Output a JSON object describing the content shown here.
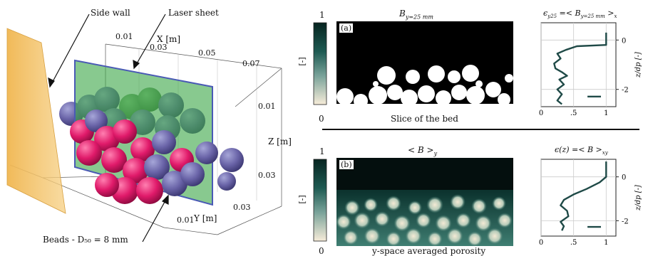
{
  "left": {
    "callouts": {
      "side_wall": "Side wall",
      "laser_sheet": "Laser sheet",
      "beads": "Beads - D₅₀ = 8 mm"
    },
    "axes": {
      "x_label": "X [m]",
      "x_ticks": [
        "0.01",
        "0.03",
        "0.05",
        "0.07"
      ],
      "z_label": "Z [m]",
      "z_ticks": [
        "0.01",
        "0.03"
      ],
      "y_label": "Y [m]",
      "y_ticks": [
        "0.01",
        "0.03"
      ]
    }
  },
  "colorbar": {
    "top": "1",
    "bottom": "0",
    "unit": "[-]"
  },
  "panels": {
    "a": {
      "tag": "(a)",
      "title": "B",
      "title_sub": "y=25 mm",
      "caption": "Slice of the bed",
      "profile_title": "ϵ",
      "profile_title_sub": "y25",
      "profile_title_rest": " =< B",
      "profile_title_sub2": "y=25 mm",
      "profile_title_end": " >",
      "profile_title_end_sub": "x"
    },
    "b": {
      "tag": "(b)",
      "title": "< B >",
      "title_sub": "y",
      "caption": "y-space averaged porosity",
      "profile_title": "ϵ(z) =< B >",
      "profile_title_sub": "xy"
    }
  },
  "profile_axes": {
    "x_ticks": [
      "0",
      ".5",
      "1"
    ],
    "y_ticks": [
      "0",
      "-2"
    ],
    "y_label": "z/d",
    "y_label_sub": "p",
    "y_unit": "[-]"
  },
  "chart_data": [
    {
      "type": "line",
      "panel": "a",
      "series": [
        {
          "values": [
            [
              1.0,
              0.3
            ],
            [
              1.0,
              -0.2
            ],
            [
              0.55,
              -0.25
            ],
            [
              0.38,
              -0.4
            ],
            [
              0.25,
              -0.55
            ],
            [
              0.3,
              -0.75
            ],
            [
              0.2,
              -0.95
            ],
            [
              0.22,
              -1.15
            ],
            [
              0.32,
              -1.3
            ],
            [
              0.4,
              -1.45
            ],
            [
              0.28,
              -1.6
            ],
            [
              0.35,
              -1.8
            ],
            [
              0.25,
              -2.0
            ],
            [
              0.32,
              -2.2
            ],
            [
              0.25,
              -2.45
            ],
            [
              0.32,
              -2.6
            ]
          ]
        }
      ],
      "xlim": [
        0,
        1.15
      ],
      "ylim": [
        -2.7,
        0.7
      ],
      "xticks": [
        0,
        0.5,
        1
      ],
      "yticks": [
        0,
        -2
      ]
    },
    {
      "type": "line",
      "panel": "b",
      "series": [
        {
          "values": [
            [
              1.0,
              0.7
            ],
            [
              1.0,
              0.0
            ],
            [
              0.9,
              -0.25
            ],
            [
              0.7,
              -0.55
            ],
            [
              0.5,
              -0.8
            ],
            [
              0.35,
              -1.05
            ],
            [
              0.3,
              -1.3
            ],
            [
              0.4,
              -1.55
            ],
            [
              0.42,
              -1.8
            ],
            [
              0.3,
              -2.05
            ],
            [
              0.35,
              -2.25
            ],
            [
              0.32,
              -2.45
            ]
          ]
        }
      ],
      "xlim": [
        0,
        1.15
      ],
      "ylim": [
        -2.7,
        0.8
      ],
      "xticks": [
        0,
        0.5,
        1
      ],
      "yticks": [
        0,
        -2
      ]
    }
  ]
}
